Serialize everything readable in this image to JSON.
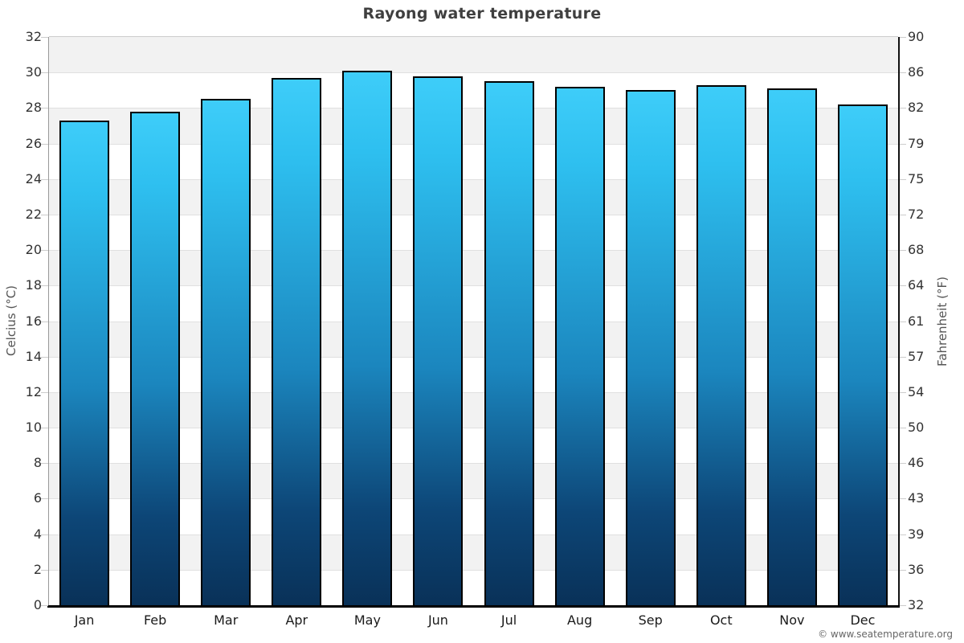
{
  "credits": "© www.seatemperature.org",
  "chart_data": {
    "type": "bar",
    "title": "Rayong water temperature",
    "categories": [
      "Jan",
      "Feb",
      "Mar",
      "Apr",
      "May",
      "Jun",
      "Jul",
      "Aug",
      "Sep",
      "Oct",
      "Nov",
      "Dec"
    ],
    "values": [
      27.3,
      27.8,
      28.5,
      29.7,
      30.1,
      29.8,
      29.5,
      29.2,
      29.0,
      29.3,
      29.1,
      28.2
    ],
    "unit": "°C",
    "ylabel_left": "Celcius (°C)",
    "ylabel_right": "Fahrenheit (°F)",
    "ylim": [
      0,
      32
    ],
    "celsius_ticks": [
      0,
      2,
      4,
      6,
      8,
      10,
      12,
      14,
      16,
      18,
      20,
      22,
      24,
      26,
      28,
      30,
      32
    ],
    "fahrenheit_tick_labels": [
      "32",
      "36",
      "39",
      "43",
      "46",
      "50",
      "54",
      "57",
      "61",
      "64",
      "68",
      "72",
      "75",
      "79",
      "82",
      "86",
      "90"
    ],
    "xlabel": "",
    "legend": "none",
    "grid": "horizontal gridlines every 2°C with alternating shaded bands",
    "colors": {
      "bar_gradient_top": "#3ECDF9",
      "bar_gradient_upper": "#2EBFEF",
      "bar_gradient_mid": "#1B86BE",
      "bar_gradient_lower": "#0D4677",
      "bar_gradient_bottom": "#093158",
      "bar_border": "#000000",
      "band_shaded": "#F2F2F2",
      "band_plain": "#FFFFFF",
      "gridline": "#E0E0E0",
      "title_text": "#3F3F3F",
      "tick_text": "#333333",
      "credits_text": "#666666"
    }
  }
}
